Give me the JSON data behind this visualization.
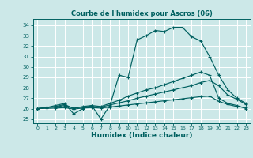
{
  "title": "Courbe de l'humidex pour Ascros (06)",
  "xlabel": "Humidex (Indice chaleur)",
  "bg_color": "#cce8e8",
  "grid_color": "#ffffff",
  "line_color": "#006060",
  "xlim": [
    -0.5,
    23.5
  ],
  "ylim": [
    24.6,
    34.6
  ],
  "xticks": [
    0,
    1,
    2,
    3,
    4,
    5,
    6,
    7,
    8,
    9,
    10,
    11,
    12,
    13,
    14,
    15,
    16,
    17,
    18,
    19,
    20,
    21,
    22,
    23
  ],
  "yticks": [
    25,
    26,
    27,
    28,
    29,
    30,
    31,
    32,
    33,
    34
  ],
  "line1_y": [
    26.0,
    26.1,
    26.3,
    26.5,
    25.5,
    26.0,
    26.3,
    25.0,
    26.3,
    29.2,
    29.0,
    32.6,
    33.0,
    33.5,
    33.4,
    33.8,
    33.8,
    32.9,
    32.5,
    31.0,
    29.2,
    27.8,
    27.0,
    26.5
  ],
  "line2_y": [
    26.0,
    26.1,
    26.2,
    26.4,
    26.0,
    26.2,
    26.3,
    26.2,
    26.5,
    26.8,
    27.2,
    27.5,
    27.8,
    28.0,
    28.3,
    28.6,
    28.9,
    29.2,
    29.5,
    29.2,
    27.0,
    26.5,
    26.3,
    26.0
  ],
  "line3_y": [
    26.0,
    26.1,
    26.15,
    26.3,
    26.05,
    26.15,
    26.2,
    26.15,
    26.35,
    26.55,
    26.75,
    27.0,
    27.2,
    27.4,
    27.6,
    27.8,
    28.0,
    28.2,
    28.5,
    28.7,
    28.2,
    27.3,
    26.9,
    26.4
  ],
  "line4_y": [
    26.0,
    26.02,
    26.05,
    26.1,
    25.95,
    26.05,
    26.1,
    26.05,
    26.15,
    26.25,
    26.35,
    26.45,
    26.55,
    26.65,
    26.75,
    26.85,
    26.95,
    27.05,
    27.15,
    27.2,
    26.7,
    26.4,
    26.2,
    26.1
  ]
}
